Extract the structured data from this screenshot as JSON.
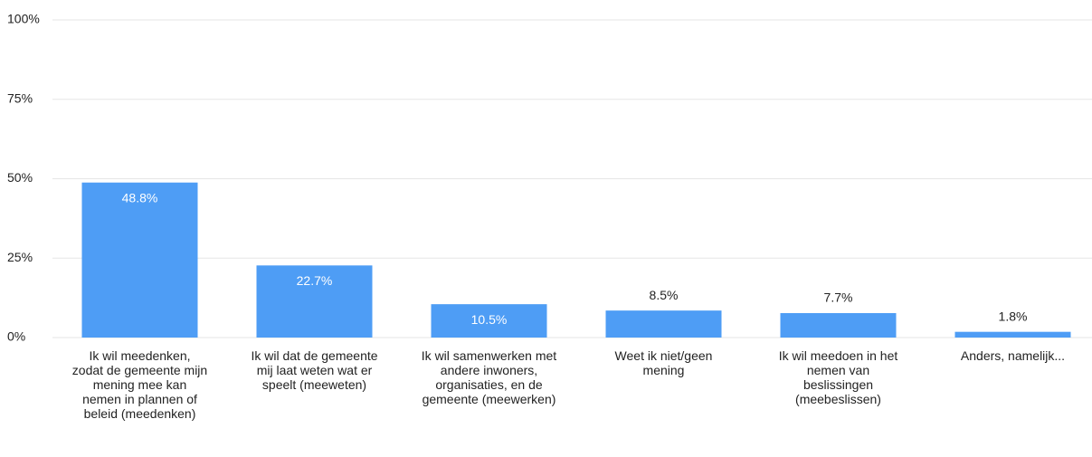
{
  "chart_data": {
    "type": "bar",
    "categories": [
      "Ik wil meedenken, zodat de gemeente mijn mening mee kan nemen in plannen of beleid (meedenken)",
      "Ik wil dat de gemeente mij laat weten wat er speelt (meeweten)",
      "Ik wil samenwerken met andere inwoners, organisaties, en de gemeente (meewerken)",
      "Weet ik niet/geen mening",
      "Ik wil meedoen in het nemen van beslissingen (meebeslissen)",
      "Anders, namelijk..."
    ],
    "values": [
      48.8,
      22.7,
      10.5,
      8.5,
      7.7,
      1.8
    ],
    "value_labels": [
      "48.8%",
      "22.7%",
      "10.5%",
      "8.5%",
      "7.7%",
      "1.8%"
    ],
    "color": "#4e9df5",
    "ylim": [
      0,
      100
    ],
    "yticks": [
      {
        "value": 0,
        "label": "0%"
      },
      {
        "value": 25,
        "label": "25%"
      },
      {
        "value": 50,
        "label": "50%"
      },
      {
        "value": 75,
        "label": "75%"
      },
      {
        "value": 100,
        "label": "100%"
      }
    ],
    "grid": true
  }
}
